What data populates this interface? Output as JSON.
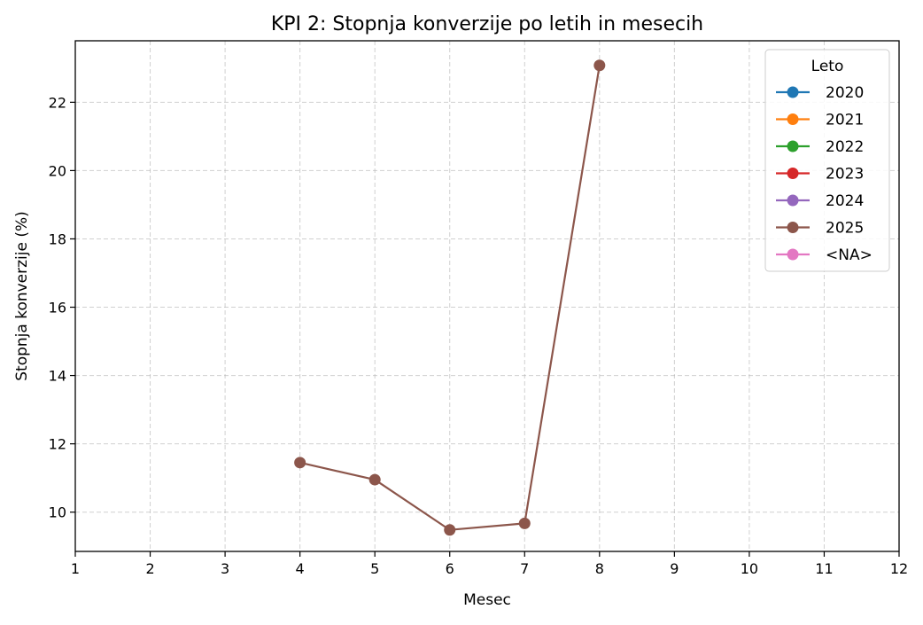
{
  "chart_data": {
    "type": "line",
    "title": "KPI 2: Stopnja konverzije po letih in mesecih",
    "xlabel": "Mesec",
    "ylabel": "Stopnja konverzije (%)",
    "xlim": [
      1,
      12
    ],
    "ylim": [
      8.85,
      23.8
    ],
    "x_ticks": [
      1,
      2,
      3,
      4,
      5,
      6,
      7,
      8,
      9,
      10,
      11,
      12
    ],
    "y_ticks": [
      10,
      12,
      14,
      16,
      18,
      20,
      22
    ],
    "grid": true,
    "legend": {
      "title": "Leto",
      "placement": "top-right"
    },
    "series": [
      {
        "name": "2020",
        "color": "#1f77b4",
        "x": [],
        "y": []
      },
      {
        "name": "2021",
        "color": "#ff7f0e",
        "x": [],
        "y": []
      },
      {
        "name": "2022",
        "color": "#2ca02c",
        "x": [],
        "y": []
      },
      {
        "name": "2023",
        "color": "#d62728",
        "x": [],
        "y": []
      },
      {
        "name": "2024",
        "color": "#9467bd",
        "x": [],
        "y": []
      },
      {
        "name": "2025",
        "color": "#8c564b",
        "x": [
          4,
          5,
          6,
          7,
          8
        ],
        "y": [
          11.45,
          10.95,
          9.48,
          9.67,
          23.08
        ]
      },
      {
        "name": "<NA>",
        "color": "#e377c2",
        "x": [],
        "y": []
      }
    ]
  }
}
